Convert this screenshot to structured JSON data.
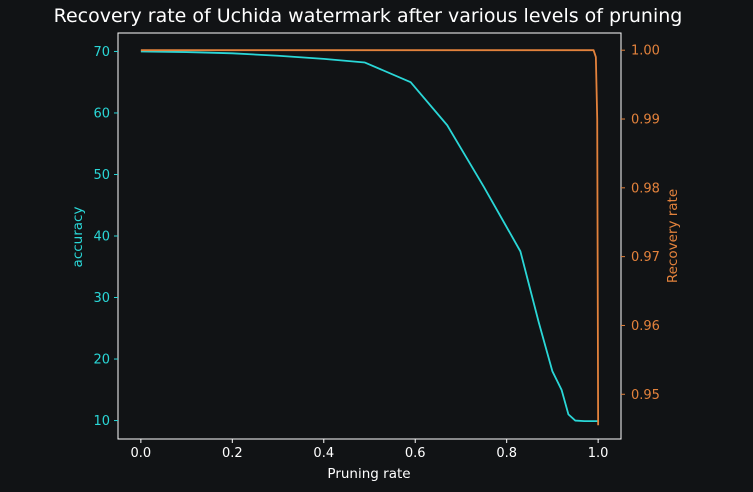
{
  "chart_data": {
    "type": "line",
    "title": "Recovery rate of Uchida watermark after various levels of pruning",
    "xlabel": "Pruning rate",
    "ylabel_left": "accuracy",
    "ylabel_right": "Recovery rate",
    "xlim": [
      -0.05,
      1.05
    ],
    "ylim_left": [
      7,
      73
    ],
    "ylim_right": [
      0.9435,
      1.0025
    ],
    "x_ticks": [
      "0.0",
      "0.2",
      "0.4",
      "0.6",
      "0.8",
      "1.0"
    ],
    "y_left_ticks": [
      "10",
      "20",
      "30",
      "40",
      "50",
      "60",
      "70"
    ],
    "y_right_ticks": [
      "0.95",
      "0.96",
      "0.97",
      "0.98",
      "0.99",
      "1.00"
    ],
    "grid": false,
    "colors": {
      "accuracy": "#2ad7d7",
      "recovery": "#e3823c",
      "axes": "#ffffff",
      "background": "#111315"
    },
    "series": [
      {
        "axis": "left",
        "x": [
          0.0,
          0.1,
          0.2,
          0.3,
          0.4,
          0.49,
          0.59,
          0.67,
          0.75,
          0.83,
          0.87,
          0.9,
          0.92,
          0.935,
          0.95,
          0.97,
          1.0
        ],
        "values": [
          70.0,
          69.9,
          69.7,
          69.3,
          68.8,
          68.2,
          65.0,
          58.0,
          48.0,
          37.5,
          26.0,
          18.0,
          15.0,
          11.0,
          10.0,
          9.9,
          9.9
        ]
      },
      {
        "axis": "right",
        "x": [
          0.0,
          0.1,
          0.3,
          0.5,
          0.7,
          0.9,
          0.99,
          0.995,
          0.998,
          1.0
        ],
        "values": [
          1.0,
          1.0,
          1.0,
          1.0,
          1.0,
          1.0,
          1.0,
          0.999,
          0.99,
          0.9455
        ]
      }
    ]
  }
}
